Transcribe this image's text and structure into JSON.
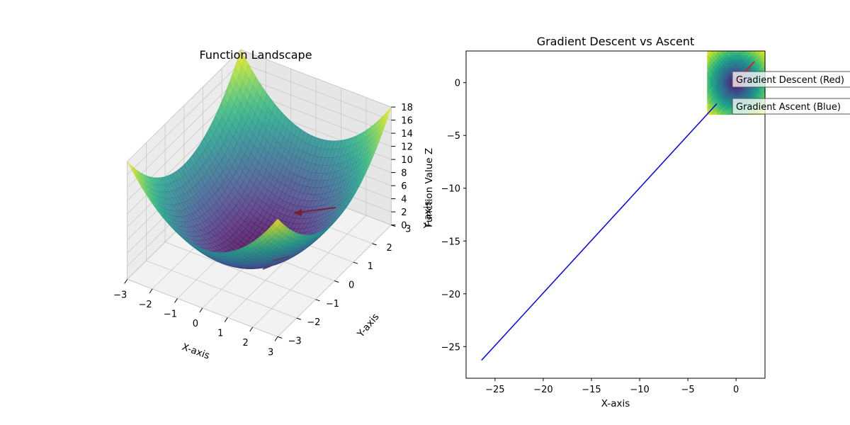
{
  "chart_data": [
    {
      "type": "surface3d",
      "title": "Function Landscape",
      "xlabel": "X-axis",
      "ylabel": "Y-axis",
      "zlabel": "Function Value Z",
      "z_function": "x^2 + y^2",
      "xlim": [
        -3,
        3
      ],
      "ylim": [
        -3,
        3
      ],
      "zlim": [
        0,
        18
      ],
      "xticks": [
        -3,
        -2,
        -1,
        0,
        1,
        2,
        3
      ],
      "yticks": [
        -3,
        -2,
        -1,
        0,
        1,
        2,
        3
      ],
      "zticks": [
        0,
        2,
        4,
        6,
        8,
        10,
        12,
        14,
        16,
        18
      ],
      "colormap": "viridis",
      "arrow_color": "#7a1f3a"
    },
    {
      "type": "line",
      "title": "Gradient Descent vs Ascent",
      "xlabel": "X-axis",
      "ylabel": "Y-axis",
      "xlim": [
        -28,
        3
      ],
      "ylim": [
        -28,
        3
      ],
      "xticks": [
        -25,
        -20,
        -15,
        -10,
        -5,
        0
      ],
      "yticks": [
        0,
        -5,
        -10,
        -15,
        -20,
        -25
      ],
      "grid": false,
      "contour_extent": {
        "x": [
          -3,
          3
        ],
        "y": [
          -3,
          3
        ]
      },
      "series": [
        {
          "name": "Gradient Descent (Red)",
          "color": "#ff0000",
          "x": [
            1.9,
            -0.3
          ],
          "y": [
            2.0,
            -0.3
          ]
        },
        {
          "name": "Gradient Ascent (Blue)",
          "color": "#0000ff",
          "x": [
            -2.0,
            -26.4
          ],
          "y": [
            -2.0,
            -26.3
          ]
        }
      ],
      "annotations": [
        {
          "text": "Gradient Descent (Red)",
          "color": "#ff0000",
          "at": [
            0,
            0.3
          ]
        },
        {
          "text": "Gradient Ascent (Blue)",
          "color": "#0000ff",
          "at": [
            0,
            -2.2
          ]
        }
      ]
    }
  ]
}
